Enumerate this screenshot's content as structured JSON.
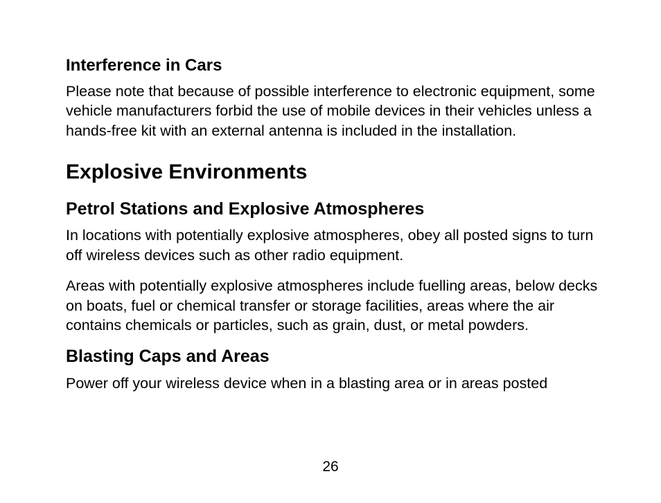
{
  "section1": {
    "heading": "Interference in Cars",
    "body": "Please note that because of possible interference to electronic equipment, some vehicle manufacturers forbid the use of mobile devices in their vehicles unless a hands-free kit with an external antenna is included in the installation."
  },
  "section2": {
    "heading": "Explosive Environments",
    "sub1": {
      "heading": "Petrol Stations and Explosive Atmospheres",
      "p1": "In locations with potentially explosive atmospheres, obey all posted signs to turn off wireless devices such as other radio equipment.",
      "p2": "Areas with potentially explosive atmospheres include fuelling areas, below decks on boats, fuel or chemical transfer or storage facilities, areas where the air contains chemicals or particles, such as grain, dust, or metal powders."
    },
    "sub2": {
      "heading": "Blasting Caps and Areas",
      "p1": "Power off your wireless device when in a blasting area or in areas posted"
    }
  },
  "pageNumber": "26"
}
